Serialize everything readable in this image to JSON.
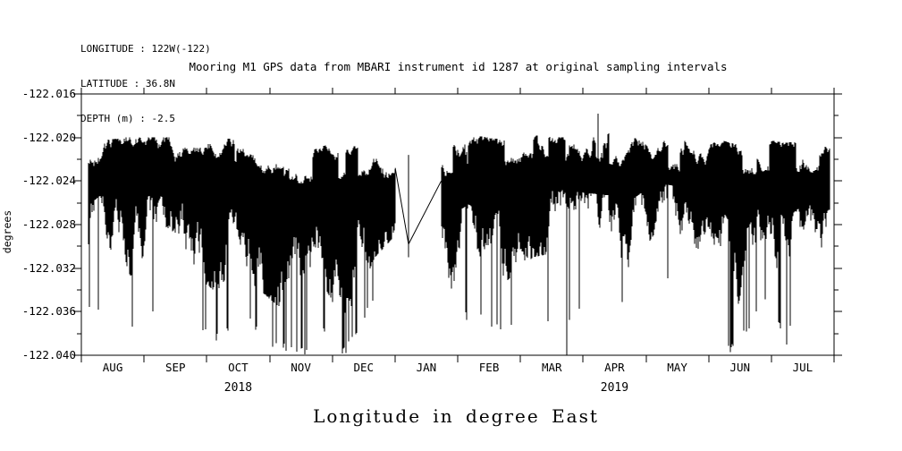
{
  "header": {
    "line1": "LONGITUDE : 122W(-122)",
    "line2": "LATITUDE : 36.8N",
    "line3": "DEPTH (m) : -2.5"
  },
  "chart_data": {
    "type": "line",
    "title": "Mooring M1 GPS data from MBARI instrument id 1287 at original sampling intervals",
    "ylabel": "degrees",
    "xlabel": "Longitude in degree East",
    "x_tick_labels": [
      "AUG",
      "SEP",
      "OCT",
      "NOV",
      "DEC",
      "JAN",
      "FEB",
      "MAR",
      "APR",
      "MAY",
      "JUN",
      "JUL"
    ],
    "year_labels": [
      {
        "text": "2018",
        "month_index": 2
      },
      {
        "text": "2019",
        "month_index": 8
      }
    ],
    "y_tick_labels": [
      "-122.016",
      "-122.020",
      "-122.024",
      "-122.028",
      "-122.032",
      "-122.036",
      "-122.040"
    ],
    "ylim": [
      -122.04,
      -122.016
    ],
    "y_major_step": 0.004,
    "y_minor_step": 0.002,
    "x_range": "Aug 2018 - Aug 2019",
    "grid": false,
    "legend": false,
    "line_color": "#000000",
    "background": "#ffffff",
    "seed": 1287,
    "envelope_fields": [
      "t",
      "top",
      "mid",
      "low",
      "deep_prob",
      "deep_value"
    ],
    "envelope": [
      [
        0.0,
        -122.0225,
        -122.0265,
        -122.0315,
        0.03,
        -122.035
      ],
      [
        0.025,
        -122.0203,
        -122.025,
        -122.032,
        0.05,
        -122.037
      ],
      [
        0.06,
        -122.02,
        -122.0255,
        -122.033,
        0.07,
        -122.039
      ],
      [
        0.095,
        -122.02,
        -122.025,
        -122.031,
        0.04,
        -122.036
      ],
      [
        0.14,
        -122.02,
        -122.0255,
        -122.032,
        0.05,
        -122.037
      ],
      [
        0.175,
        -122.0202,
        -122.0265,
        -122.034,
        0.08,
        -122.039
      ],
      [
        0.22,
        -122.02,
        -122.026,
        -122.033,
        0.05,
        -122.037
      ],
      [
        0.245,
        -122.0205,
        -122.027,
        -122.0345,
        0.08,
        -122.0395
      ],
      [
        0.27,
        -122.021,
        -122.0285,
        -122.036,
        0.12,
        -122.0398
      ],
      [
        0.295,
        -122.0215,
        -122.029,
        -122.037,
        0.15,
        -122.04
      ],
      [
        0.325,
        -122.0207,
        -122.027,
        -122.034,
        0.07,
        -122.038
      ],
      [
        0.345,
        -122.021,
        -122.0285,
        -122.0365,
        0.13,
        -122.04
      ],
      [
        0.365,
        -122.0208,
        -122.0275,
        -122.035,
        0.09,
        -122.039
      ],
      [
        0.39,
        -122.0205,
        -122.0255,
        -122.031,
        0.03,
        -122.035
      ],
      [
        0.417,
        -122.0215,
        -122.024,
        -122.029,
        0.0,
        -122.03
      ],
      [
        0.478,
        -122.021,
        -122.0245,
        -122.03,
        0.05,
        -122.034
      ],
      [
        0.49,
        -122.0205,
        -122.027,
        -122.034,
        0.12,
        -122.039
      ],
      [
        0.52,
        -122.0198,
        -122.0255,
        -122.032,
        0.05,
        -122.036
      ],
      [
        0.56,
        -122.0202,
        -122.0265,
        -122.0335,
        0.08,
        -122.0385
      ],
      [
        0.6,
        -122.0198,
        -122.025,
        -122.031,
        0.05,
        -122.036
      ],
      [
        0.635,
        -122.02,
        -122.0245,
        -122.0305,
        0.06,
        -122.038
      ],
      [
        0.67,
        -122.0198,
        -122.0248,
        -122.0305,
        0.04,
        -122.035
      ],
      [
        0.7,
        -122.0196,
        -122.025,
        -122.031,
        0.05,
        -122.035
      ],
      [
        0.73,
        -122.02,
        -122.0255,
        -122.032,
        0.06,
        -122.0355
      ],
      [
        0.76,
        -122.0203,
        -122.024,
        -122.029,
        0.03,
        -122.0335
      ],
      [
        0.8,
        -122.0203,
        -122.0242,
        -122.0295,
        0.03,
        -122.033
      ],
      [
        0.84,
        -122.02,
        -122.025,
        -122.031,
        0.04,
        -122.035
      ],
      [
        0.862,
        -122.0205,
        -122.0275,
        -122.0355,
        0.12,
        -122.0398
      ],
      [
        0.885,
        -122.0208,
        -122.028,
        -122.035,
        0.1,
        -122.038
      ],
      [
        0.91,
        -122.0202,
        -122.025,
        -122.031,
        0.04,
        -122.035
      ],
      [
        0.935,
        -122.0205,
        -122.0272,
        -122.0345,
        0.12,
        -122.039
      ],
      [
        0.96,
        -122.0203,
        -122.0258,
        -122.032,
        0.05,
        -122.036
      ],
      [
        1.0,
        -122.0207,
        -122.0265,
        -122.0315,
        0.04,
        -122.034
      ]
    ],
    "gap_segments": [
      [
        [
          0.417,
          -122.0228
        ],
        [
          0.4347,
          -122.0298
        ]
      ],
      [
        [
          0.4347,
          -122.0216
        ],
        [
          0.4347,
          -122.031
        ]
      ],
      [
        [
          0.4347,
          -122.0298
        ],
        [
          0.478,
          -122.024
        ]
      ]
    ],
    "events": {
      "up_spike": {
        "t": 0.687,
        "value": -122.0178
      },
      "deep_spikes": [
        {
          "t": 0.297,
          "value": -122.0399
        },
        {
          "t": 0.352,
          "value": -122.0398
        },
        {
          "t": 0.645,
          "value": -122.04
        },
        {
          "t": 0.862,
          "value": -122.0397
        },
        {
          "t": 0.937,
          "value": -122.039
        }
      ]
    }
  }
}
